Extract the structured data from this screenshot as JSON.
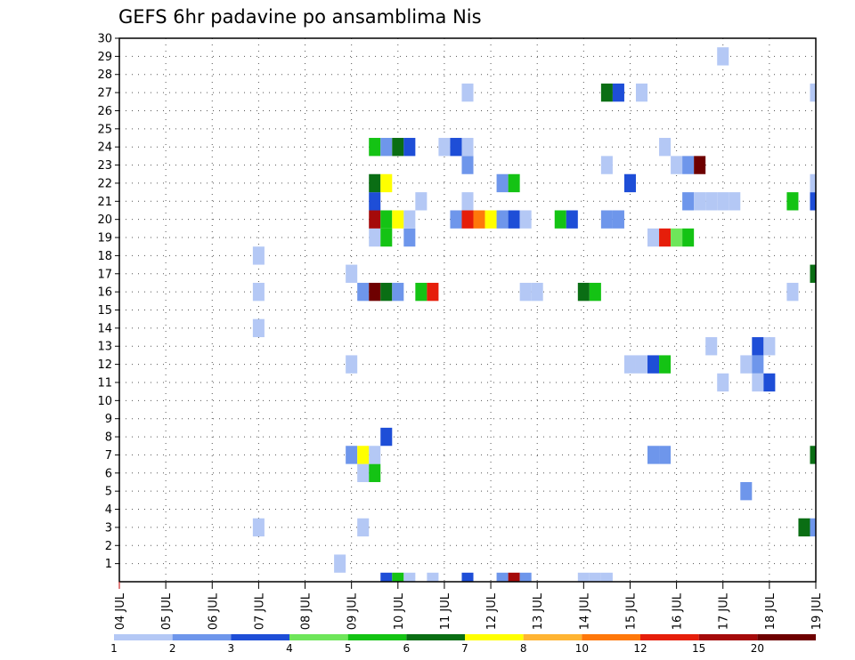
{
  "chart_data": {
    "type": "heatmap",
    "title": "GEFS 6hr padavine po ansamblima Nis",
    "xlabel": "",
    "ylabel": "",
    "x_tick_labels": [
      "04 JUL",
      "05 JUL",
      "06 JUL",
      "07 JUL",
      "08 JUL",
      "09 JUL",
      "10 JUL",
      "11 JUL",
      "12 JUL",
      "13 JUL",
      "14 JUL",
      "15 JUL",
      "16 JUL",
      "17 JUL",
      "18 JUL",
      "19 JUL"
    ],
    "y_tick_labels": [
      "1",
      "2",
      "3",
      "4",
      "5",
      "6",
      "7",
      "8",
      "9",
      "10",
      "11",
      "12",
      "13",
      "14",
      "15",
      "16",
      "17",
      "18",
      "19",
      "20",
      "21",
      "22",
      "23",
      "24",
      "25",
      "26",
      "27",
      "28",
      "29",
      "30"
    ],
    "x_range": [
      0,
      60
    ],
    "y_range": [
      0,
      30
    ],
    "x_step_hours": 6,
    "grid": true,
    "legend_placement": "bottom",
    "legend": {
      "tick_labels": [
        "1",
        "2",
        "3",
        "4",
        "5",
        "6",
        "7",
        "8",
        "10",
        "12",
        "15",
        "20"
      ],
      "colors": [
        "#b4c8f5",
        "#6e96eb",
        "#1e4ed7",
        "#6ee65a",
        "#14c314",
        "#0a6e14",
        "#ffff00",
        "#ffb432",
        "#ff780a",
        "#e61e0a",
        "#a50a0a",
        "#6e0000"
      ]
    },
    "cells": [
      {
        "x": 23,
        "y": 0,
        "value": 3
      },
      {
        "x": 24,
        "y": 0,
        "value": 5
      },
      {
        "x": 25,
        "y": 0,
        "value": 1
      },
      {
        "x": 27,
        "y": 0,
        "value": 1
      },
      {
        "x": 30,
        "y": 0,
        "value": 3
      },
      {
        "x": 33,
        "y": 0,
        "value": 2
      },
      {
        "x": 34,
        "y": 0,
        "value": 15
      },
      {
        "x": 35,
        "y": 0,
        "value": 2
      },
      {
        "x": 40,
        "y": 0,
        "value": 1
      },
      {
        "x": 41,
        "y": 0,
        "value": 1
      },
      {
        "x": 42,
        "y": 0,
        "value": 1
      },
      {
        "x": 19,
        "y": 1,
        "value": 1
      },
      {
        "x": 12,
        "y": 3,
        "value": 1
      },
      {
        "x": 21,
        "y": 3,
        "value": 1
      },
      {
        "x": 59,
        "y": 3,
        "value": 6
      },
      {
        "x": 60,
        "y": 3,
        "value": 2
      },
      {
        "x": 54,
        "y": 5,
        "value": 2
      },
      {
        "x": 21,
        "y": 6,
        "value": 1
      },
      {
        "x": 22,
        "y": 6,
        "value": 5
      },
      {
        "x": 20,
        "y": 7,
        "value": 2
      },
      {
        "x": 21,
        "y": 7,
        "value": 7
      },
      {
        "x": 22,
        "y": 7,
        "value": 1
      },
      {
        "x": 46,
        "y": 7,
        "value": 2
      },
      {
        "x": 47,
        "y": 7,
        "value": 2
      },
      {
        "x": 60,
        "y": 7,
        "value": 6
      },
      {
        "x": 23,
        "y": 8,
        "value": 3
      },
      {
        "x": 52,
        "y": 11,
        "value": 1
      },
      {
        "x": 55,
        "y": 11,
        "value": 1
      },
      {
        "x": 56,
        "y": 11,
        "value": 3
      },
      {
        "x": 20,
        "y": 12,
        "value": 1
      },
      {
        "x": 44,
        "y": 12,
        "value": 1
      },
      {
        "x": 45,
        "y": 12,
        "value": 1
      },
      {
        "x": 46,
        "y": 12,
        "value": 3
      },
      {
        "x": 47,
        "y": 12,
        "value": 5
      },
      {
        "x": 54,
        "y": 12,
        "value": 1
      },
      {
        "x": 55,
        "y": 12,
        "value": 2
      },
      {
        "x": 55,
        "y": 13,
        "value": 3
      },
      {
        "x": 56,
        "y": 13,
        "value": 1
      },
      {
        "x": 51,
        "y": 13,
        "value": 1
      },
      {
        "x": 12,
        "y": 14,
        "value": 1
      },
      {
        "x": 12,
        "y": 16,
        "value": 1
      },
      {
        "x": 21,
        "y": 16,
        "value": 2
      },
      {
        "x": 22,
        "y": 16,
        "value": 20
      },
      {
        "x": 23,
        "y": 16,
        "value": 6
      },
      {
        "x": 24,
        "y": 16,
        "value": 2
      },
      {
        "x": 26,
        "y": 16,
        "value": 5
      },
      {
        "x": 27,
        "y": 16,
        "value": 12
      },
      {
        "x": 35,
        "y": 16,
        "value": 1
      },
      {
        "x": 36,
        "y": 16,
        "value": 1
      },
      {
        "x": 40,
        "y": 16,
        "value": 6
      },
      {
        "x": 41,
        "y": 16,
        "value": 5
      },
      {
        "x": 58,
        "y": 16,
        "value": 1
      },
      {
        "x": 20,
        "y": 17,
        "value": 1
      },
      {
        "x": 60,
        "y": 17,
        "value": 6
      },
      {
        "x": 12,
        "y": 18,
        "value": 1
      },
      {
        "x": 22,
        "y": 19,
        "value": 1
      },
      {
        "x": 23,
        "y": 19,
        "value": 5
      },
      {
        "x": 25,
        "y": 19,
        "value": 2
      },
      {
        "x": 46,
        "y": 19,
        "value": 1
      },
      {
        "x": 47,
        "y": 19,
        "value": 12
      },
      {
        "x": 48,
        "y": 19,
        "value": 4
      },
      {
        "x": 49,
        "y": 19,
        "value": 5
      },
      {
        "x": 22,
        "y": 20,
        "value": 15
      },
      {
        "x": 23,
        "y": 20,
        "value": 5
      },
      {
        "x": 24,
        "y": 20,
        "value": 7
      },
      {
        "x": 25,
        "y": 20,
        "value": 1
      },
      {
        "x": 29,
        "y": 20,
        "value": 2
      },
      {
        "x": 30,
        "y": 20,
        "value": 12
      },
      {
        "x": 31,
        "y": 20,
        "value": 10
      },
      {
        "x": 32,
        "y": 20,
        "value": 7
      },
      {
        "x": 33,
        "y": 20,
        "value": 2
      },
      {
        "x": 34,
        "y": 20,
        "value": 3
      },
      {
        "x": 35,
        "y": 20,
        "value": 1
      },
      {
        "x": 38,
        "y": 20,
        "value": 5
      },
      {
        "x": 39,
        "y": 20,
        "value": 3
      },
      {
        "x": 42,
        "y": 20,
        "value": 2
      },
      {
        "x": 43,
        "y": 20,
        "value": 2
      },
      {
        "x": 22,
        "y": 21,
        "value": 3
      },
      {
        "x": 26,
        "y": 21,
        "value": 1
      },
      {
        "x": 30,
        "y": 21,
        "value": 1
      },
      {
        "x": 49,
        "y": 21,
        "value": 2
      },
      {
        "x": 50,
        "y": 21,
        "value": 1
      },
      {
        "x": 51,
        "y": 21,
        "value": 1
      },
      {
        "x": 52,
        "y": 21,
        "value": 1
      },
      {
        "x": 53,
        "y": 21,
        "value": 1
      },
      {
        "x": 58,
        "y": 21,
        "value": 5
      },
      {
        "x": 60,
        "y": 21,
        "value": 3
      },
      {
        "x": 22,
        "y": 22,
        "value": 6
      },
      {
        "x": 23,
        "y": 22,
        "value": 7
      },
      {
        "x": 33,
        "y": 22,
        "value": 2
      },
      {
        "x": 34,
        "y": 22,
        "value": 5
      },
      {
        "x": 44,
        "y": 22,
        "value": 3
      },
      {
        "x": 60,
        "y": 22,
        "value": 1
      },
      {
        "x": 30,
        "y": 23,
        "value": 2
      },
      {
        "x": 42,
        "y": 23,
        "value": 1
      },
      {
        "x": 48,
        "y": 23,
        "value": 1
      },
      {
        "x": 49,
        "y": 23,
        "value": 2
      },
      {
        "x": 50,
        "y": 23,
        "value": 20
      },
      {
        "x": 22,
        "y": 24,
        "value": 5
      },
      {
        "x": 23,
        "y": 24,
        "value": 2
      },
      {
        "x": 24,
        "y": 24,
        "value": 6
      },
      {
        "x": 25,
        "y": 24,
        "value": 3
      },
      {
        "x": 28,
        "y": 24,
        "value": 1
      },
      {
        "x": 29,
        "y": 24,
        "value": 3
      },
      {
        "x": 30,
        "y": 24,
        "value": 1
      },
      {
        "x": 47,
        "y": 24,
        "value": 1
      },
      {
        "x": 30,
        "y": 27,
        "value": 1
      },
      {
        "x": 42,
        "y": 27,
        "value": 6
      },
      {
        "x": 43,
        "y": 27,
        "value": 3
      },
      {
        "x": 45,
        "y": 27,
        "value": 1
      },
      {
        "x": 60,
        "y": 27,
        "value": 1
      },
      {
        "x": 52,
        "y": 29,
        "value": 1
      }
    ]
  }
}
